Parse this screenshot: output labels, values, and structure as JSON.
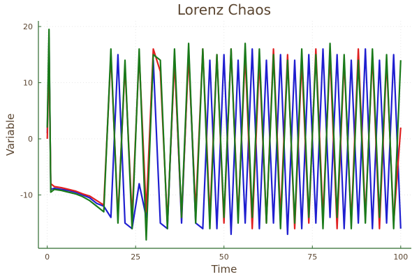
{
  "chart_data": {
    "type": "line",
    "title": "Lorenz Chaos",
    "xlabel": "Time",
    "ylabel": "Variable",
    "xlim": [
      -2.5,
      103
    ],
    "ylim": [
      -19.5,
      21
    ],
    "xticks": [
      0,
      25,
      50,
      75,
      100
    ],
    "xtick_labels": [
      "0",
      "25",
      "50",
      "75",
      "100"
    ],
    "yticks": [
      -10,
      0,
      10,
      20
    ],
    "ytick_labels": [
      "-10",
      "0",
      "10",
      "20"
    ],
    "grid": true,
    "legend": "none",
    "series": [
      {
        "color": "#1f1fd0",
        "x": [
          0,
          0.5,
          1,
          2,
          4,
          6,
          8,
          10,
          12,
          14,
          16,
          18,
          20,
          22,
          24,
          26,
          28,
          30,
          32,
          34,
          36,
          38,
          40,
          42,
          44,
          46,
          48,
          50,
          52,
          54,
          56,
          58,
          60,
          62,
          64,
          66,
          68,
          70,
          72,
          74,
          76,
          78,
          80,
          82,
          84,
          86,
          88,
          90,
          92,
          94,
          96,
          98,
          100
        ],
        "y": [
          1,
          18,
          -9,
          -8.8,
          -9,
          -9.2,
          -9.5,
          -10,
          -10.5,
          -11.5,
          -12,
          -14,
          15,
          -15,
          -16,
          -8,
          -14,
          14,
          -15,
          -16,
          15,
          -15,
          16,
          -15,
          -16,
          14,
          -16,
          15,
          -17,
          14,
          -15,
          16,
          -16,
          14,
          -15,
          15,
          -17,
          14,
          -16,
          15,
          -15,
          16,
          -14,
          15,
          -16,
          14,
          -15,
          16,
          -16,
          14,
          -15,
          15,
          -16
        ]
      },
      {
        "color": "#e01f1f",
        "x": [
          0,
          0.5,
          1,
          2,
          4,
          6,
          8,
          10,
          12,
          14,
          16,
          18,
          20,
          22,
          24,
          26,
          28,
          30,
          32,
          34,
          36,
          38,
          40,
          42,
          44,
          46,
          48,
          50,
          52,
          54,
          56,
          58,
          60,
          62,
          64,
          66,
          68,
          70,
          72,
          74,
          76,
          78,
          80,
          82,
          84,
          86,
          88,
          90,
          92,
          94,
          96,
          98,
          100
        ],
        "y": [
          0,
          16,
          -8,
          -8.5,
          -8.7,
          -9,
          -9.3,
          -9.8,
          -10.2,
          -11,
          -11.8,
          15,
          -14,
          13,
          -14,
          15,
          -13,
          16,
          12,
          -15,
          14,
          -14,
          15,
          -13,
          16,
          -14,
          15,
          -15,
          16,
          -14,
          15,
          -16,
          14,
          -15,
          16,
          -14,
          15,
          -16,
          14,
          -15,
          16,
          -14,
          15,
          -16,
          14,
          -15,
          16,
          -14,
          15,
          -16,
          14,
          -15,
          2
        ]
      },
      {
        "color": "#1a7a1a",
        "x": [
          0,
          0.5,
          1,
          2,
          4,
          6,
          8,
          10,
          12,
          14,
          16,
          18,
          20,
          22,
          24,
          26,
          28,
          30,
          32,
          34,
          36,
          38,
          40,
          42,
          44,
          46,
          48,
          50,
          52,
          54,
          56,
          58,
          60,
          62,
          64,
          66,
          68,
          70,
          72,
          74,
          76,
          78,
          80,
          82,
          84,
          86,
          88,
          90,
          92,
          94,
          96,
          98,
          100
        ],
        "y": [
          2,
          19.5,
          -9.5,
          -9,
          -9.2,
          -9.5,
          -9.8,
          -10.3,
          -11,
          -12,
          -13,
          16,
          -15,
          14,
          -16,
          16,
          -18,
          15,
          14,
          -16,
          16,
          -14,
          17,
          -15,
          16,
          -16,
          15,
          -14,
          16,
          -15,
          17,
          -14,
          16,
          -15,
          15,
          -16,
          14,
          -15,
          16,
          -14,
          15,
          -16,
          17,
          -14,
          15,
          -16,
          14,
          -15,
          16,
          -14,
          15,
          -16,
          14
        ]
      }
    ]
  }
}
